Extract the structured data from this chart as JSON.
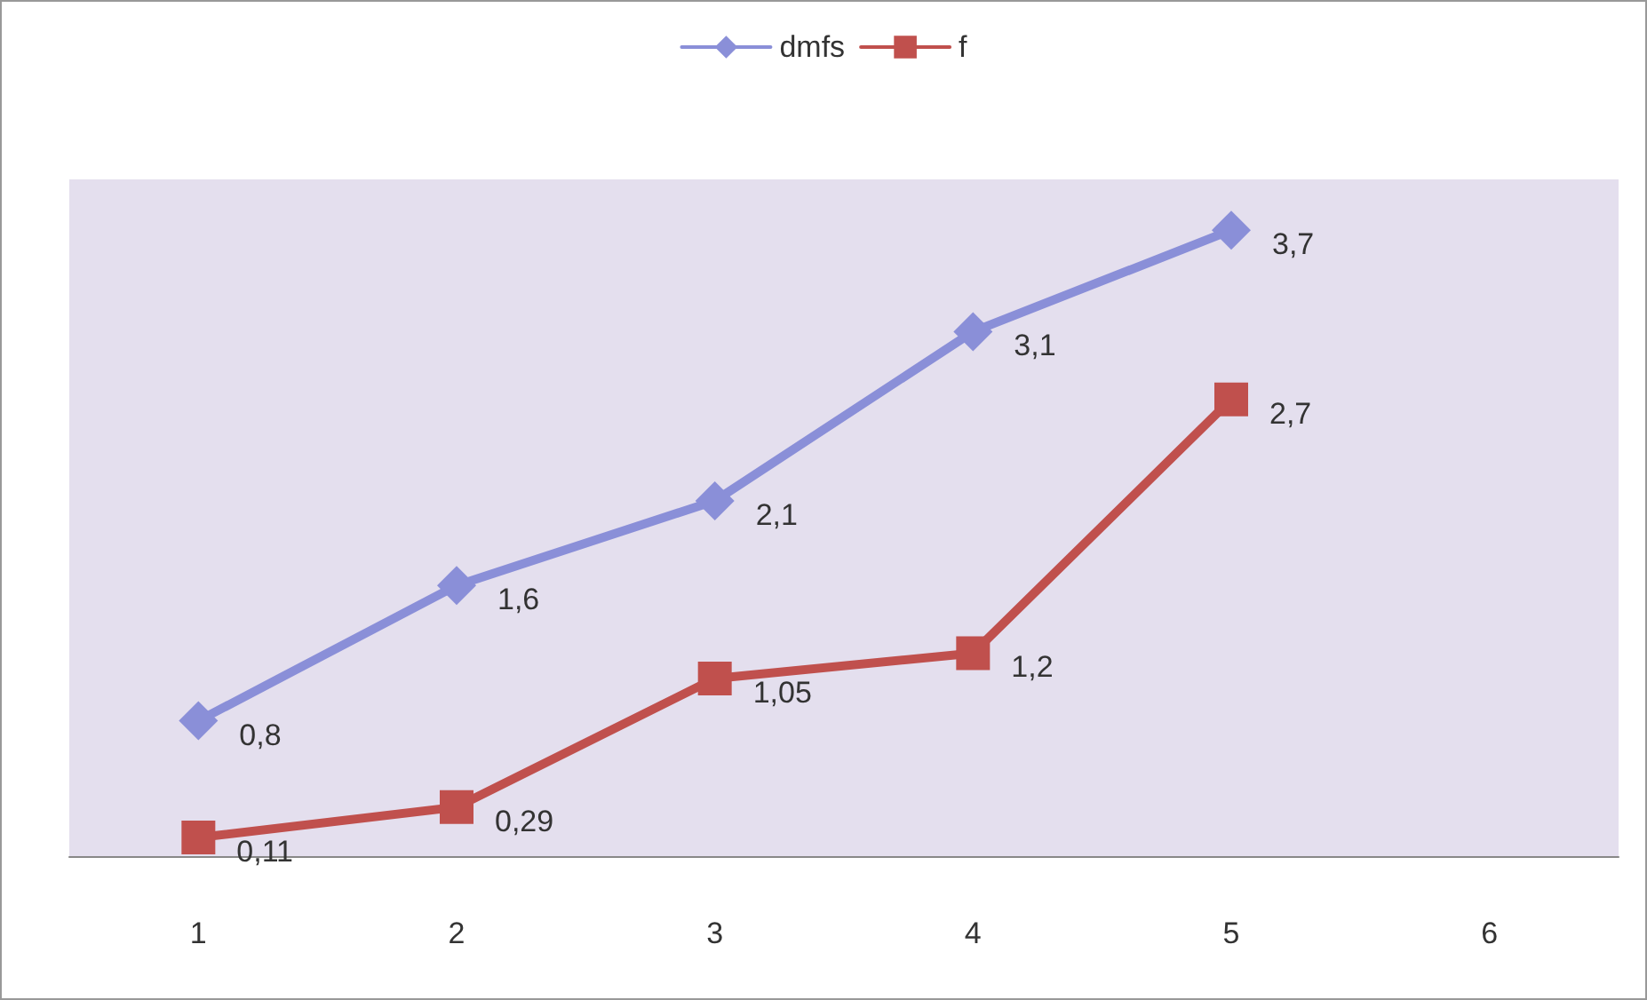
{
  "chart_data": {
    "type": "line",
    "categories": [
      "1",
      "2",
      "3",
      "4",
      "5",
      "6"
    ],
    "series": [
      {
        "name": "dmfs",
        "color": "#8a8fd8",
        "marker": "diamond",
        "values": [
          0.8,
          1.6,
          2.1,
          3.1,
          3.7,
          null
        ],
        "value_labels": [
          "0,8",
          "1,6",
          "2,1",
          "3,1",
          "3,7",
          null
        ]
      },
      {
        "name": "f",
        "color": "#c0504d",
        "marker": "square",
        "values": [
          0.11,
          0.29,
          1.05,
          1.2,
          2.7,
          null
        ],
        "value_labels": [
          "0,11",
          "0,29",
          "1,05",
          "1,2",
          "2,7",
          null
        ]
      }
    ],
    "ylim": [
      0,
      4
    ],
    "tick_labels": "x",
    "legend": "top"
  }
}
